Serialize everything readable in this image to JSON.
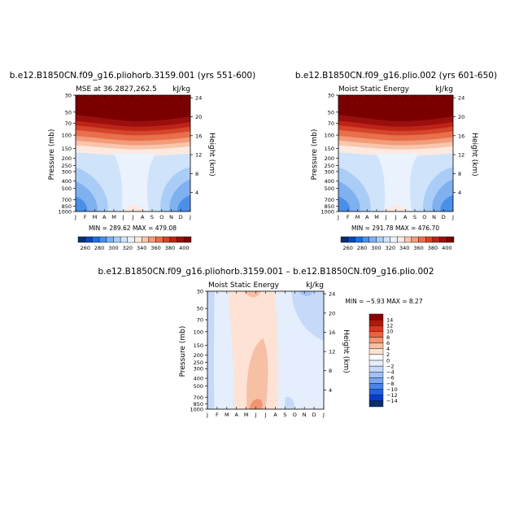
{
  "colors": {
    "mse_scale": [
      "#08306b",
      "#0a46b4",
      "#1f6fe0",
      "#4a90e8",
      "#7fb0f0",
      "#a9cdf6",
      "#cfe3fb",
      "#e9f2fd",
      "#fde9df",
      "#f8c5ad",
      "#f29c7a",
      "#e8704d",
      "#d6452b",
      "#bd2417",
      "#9a0f0d",
      "#7a0000"
    ],
    "diff_scale": [
      "#08306b",
      "#0a3cc8",
      "#1f62e0",
      "#4a84ea",
      "#7aa6f0",
      "#a2c1f5",
      "#c6d9f8",
      "#e4eefc",
      "#ffffff",
      "#fde2d5",
      "#f7bfa4",
      "#f09472",
      "#e4663f",
      "#d23a1e",
      "#b0180d",
      "#8a0000"
    ]
  },
  "chart_data": [
    {
      "type": "heatmap",
      "title": "b.e12.B1850CN.f09_g16.pliohorb.3159.001 (yrs 551-600)",
      "left_label": "MSE at 36.2827,262.5",
      "right_label": "kJ/kg",
      "ylabel": "Pressure (mb)",
      "ylabel_right": "Height (km)",
      "x_ticks": [
        "J",
        "F",
        "M",
        "A",
        "M",
        "J",
        "J",
        "A",
        "S",
        "O",
        "N",
        "D",
        "J"
      ],
      "y_ticks": [
        "30",
        "50",
        "70",
        "100",
        "150",
        "200",
        "250",
        "300",
        "400",
        "500",
        "700",
        "850",
        "1000"
      ],
      "y_right_ticks": [
        "24",
        "20",
        "16",
        "12",
        "8",
        "4"
      ],
      "minmax_text": "MIN = 289.62   MAX = 479.08",
      "min": 289.62,
      "max": 479.08,
      "colorbar_ticks": [
        "260",
        "280",
        "300",
        "320",
        "340",
        "360",
        "380",
        "400"
      ],
      "levels": [
        260,
        270,
        280,
        290,
        300,
        310,
        320,
        330,
        340,
        350,
        360,
        370,
        380,
        390,
        400
      ]
    },
    {
      "type": "heatmap",
      "title": "b.e12.B1850CN.f09_g16.plio.002 (yrs 601-650)",
      "left_label": "Moist Static Energy",
      "right_label": "kJ/kg",
      "ylabel": "Pressure (mb)",
      "ylabel_right": "Height (km)",
      "x_ticks": [
        "J",
        "F",
        "M",
        "A",
        "M",
        "J",
        "J",
        "A",
        "S",
        "O",
        "N",
        "D",
        "J"
      ],
      "y_ticks": [
        "30",
        "50",
        "70",
        "100",
        "150",
        "200",
        "250",
        "300",
        "400",
        "500",
        "700",
        "850",
        "1000"
      ],
      "y_right_ticks": [
        "24",
        "20",
        "16",
        "12",
        "8",
        "4"
      ],
      "minmax_text": "MIN = 291.78   MAX = 476.70",
      "min": 291.78,
      "max": 476.7,
      "colorbar_ticks": [
        "260",
        "280",
        "300",
        "320",
        "340",
        "360",
        "380",
        "400"
      ],
      "levels": [
        260,
        270,
        280,
        290,
        300,
        310,
        320,
        330,
        340,
        350,
        360,
        370,
        380,
        390,
        400
      ]
    },
    {
      "type": "heatmap",
      "title": "b.e12.B1850CN.f09_g16.pliohorb.3159.001 – b.e12.B1850CN.f09_g16.plio.002",
      "left_label": "Moist Static Energy",
      "right_label": "kJ/kg",
      "ylabel": "Pressure (mb)",
      "ylabel_right": "Height (km)",
      "x_ticks": [
        "J",
        "F",
        "M",
        "A",
        "M",
        "J",
        "J",
        "A",
        "S",
        "O",
        "N",
        "D",
        "J"
      ],
      "y_ticks": [
        "30",
        "50",
        "70",
        "100",
        "150",
        "200",
        "250",
        "300",
        "400",
        "500",
        "700",
        "850",
        "1000"
      ],
      "y_right_ticks": [
        "24",
        "20",
        "16",
        "12",
        "8",
        "4"
      ],
      "minmax_text": "MIN = −5.93  MAX =   8.27",
      "min": -5.93,
      "max": 8.27,
      "colorbar_ticks": [
        "14",
        "12",
        "10",
        "8",
        "6",
        "4",
        "2",
        "0",
        "−2",
        "−4",
        "−6",
        "−8",
        "−10",
        "−12",
        "−14"
      ],
      "levels": [
        -14,
        -12,
        -10,
        -8,
        -6,
        -4,
        -2,
        0,
        2,
        4,
        6,
        8,
        10,
        12,
        14
      ]
    }
  ]
}
